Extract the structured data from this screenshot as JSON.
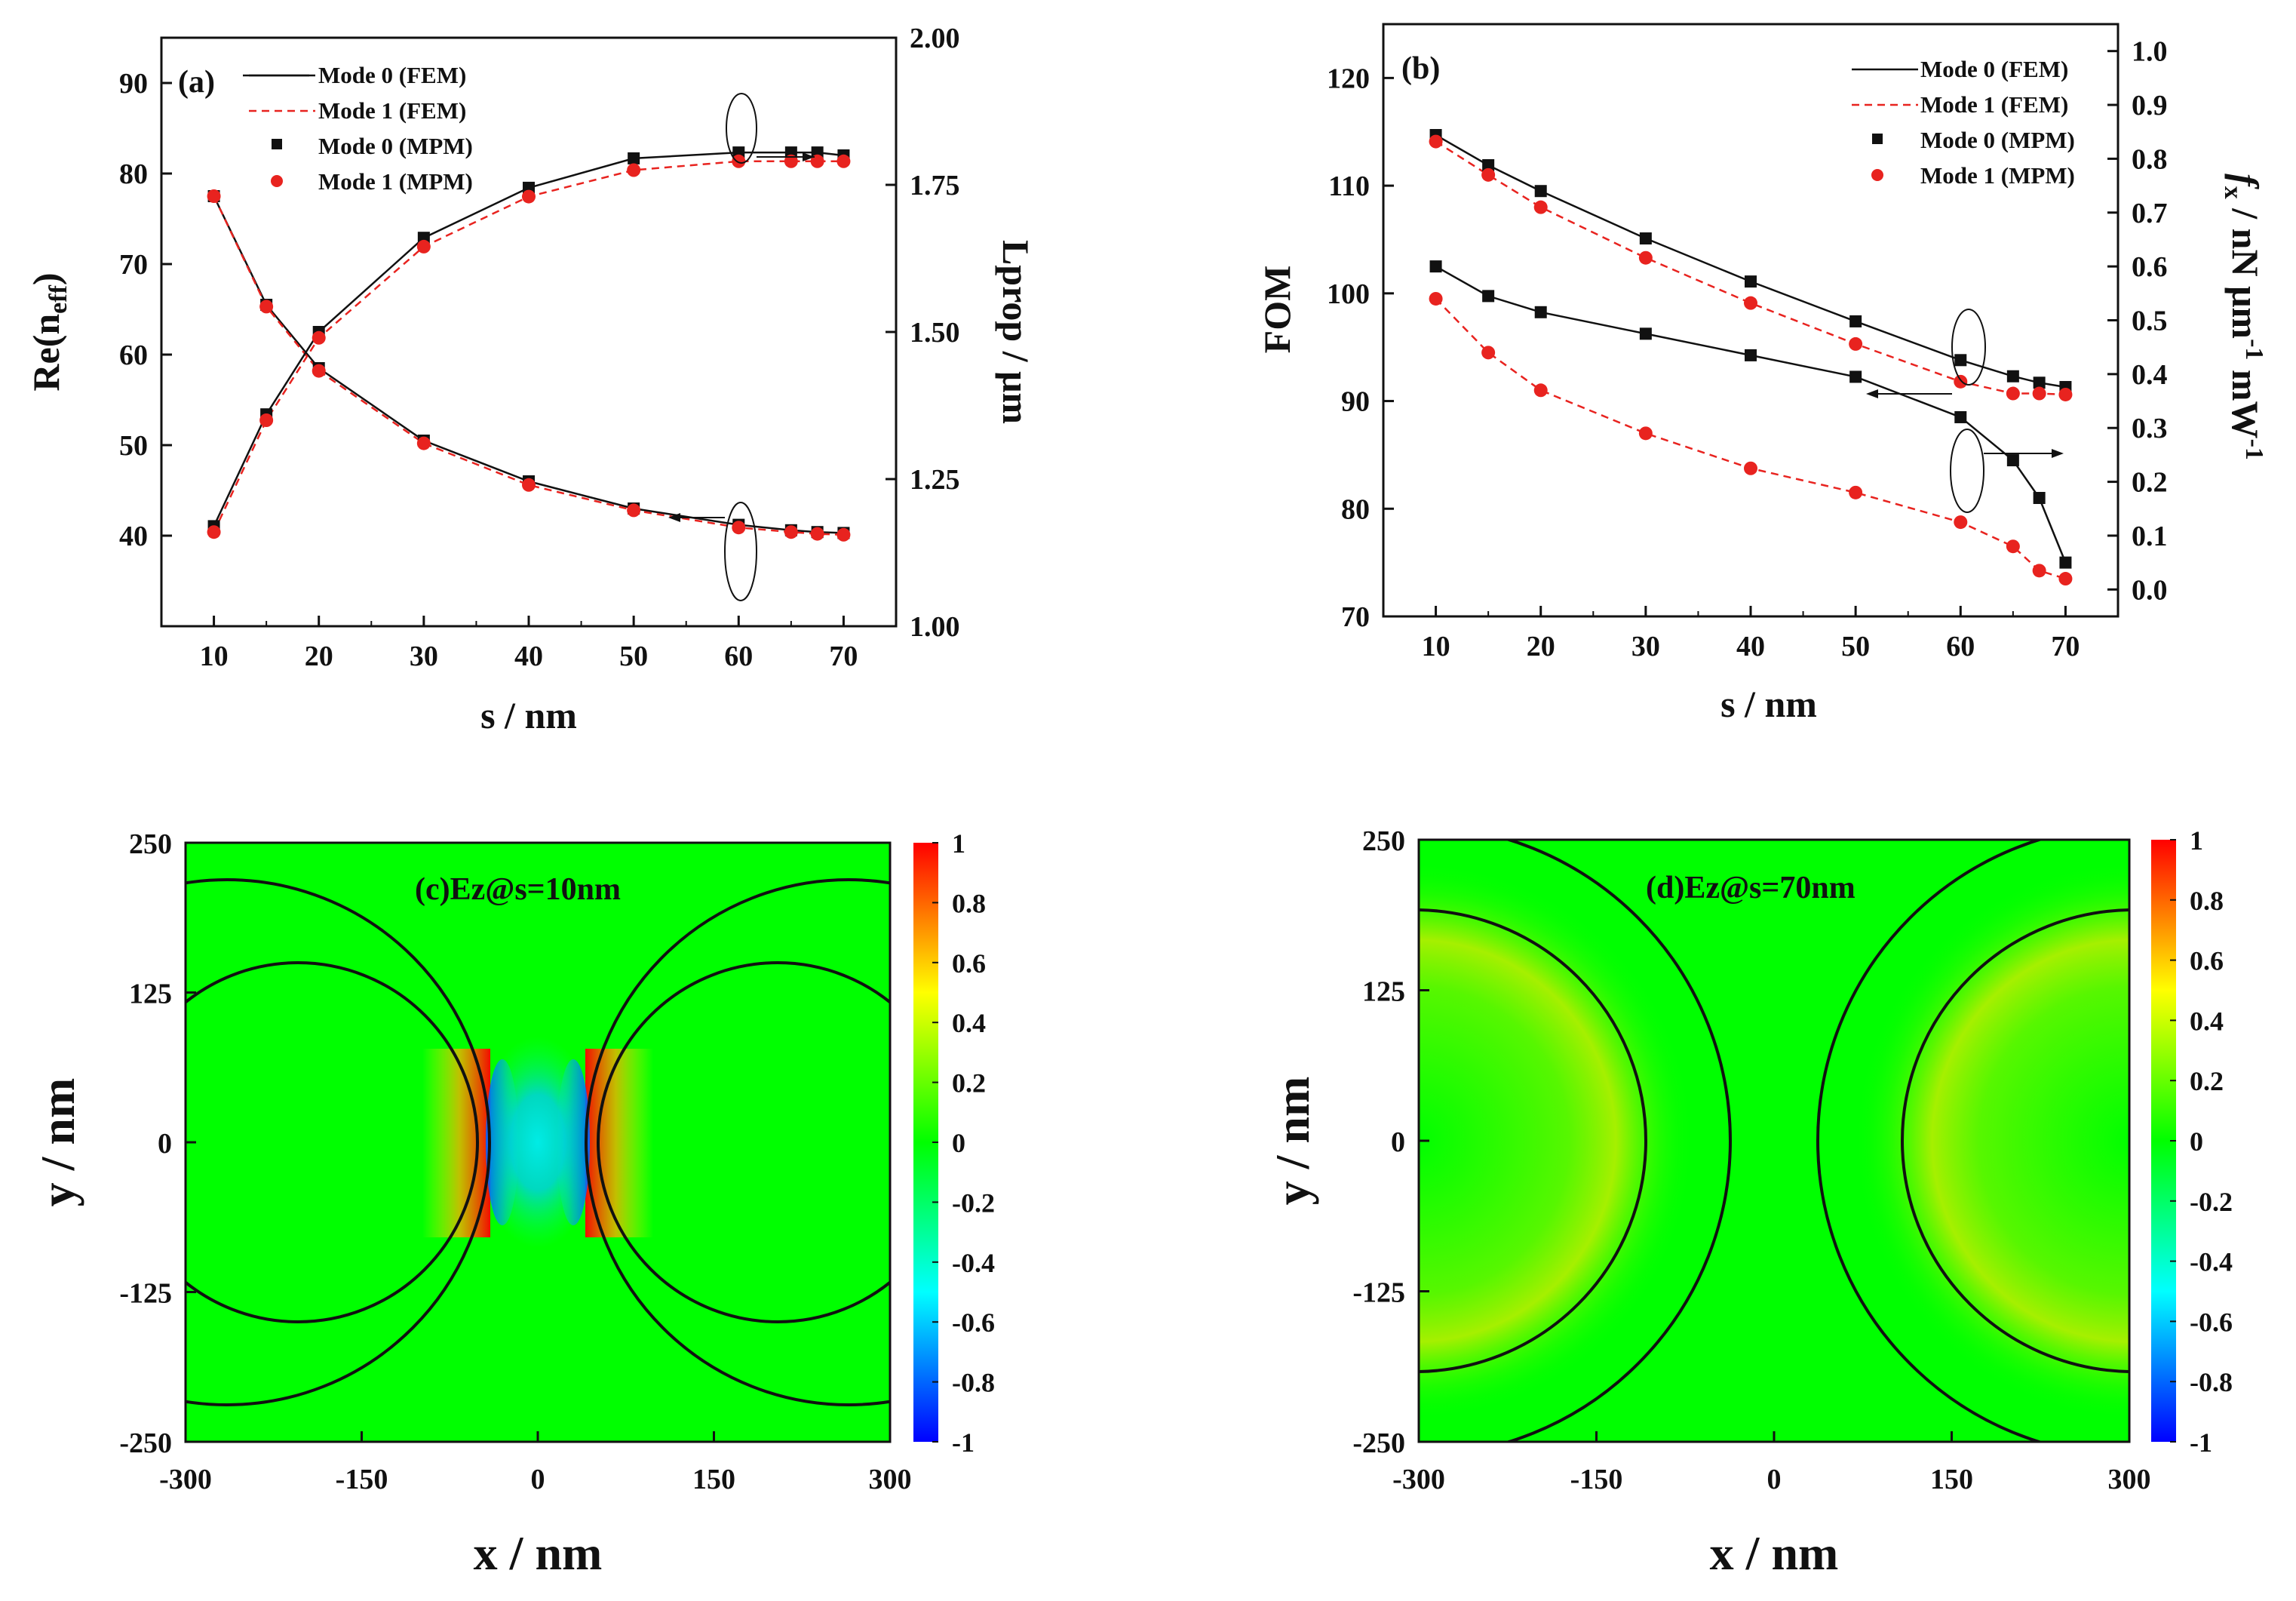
{
  "chart_data": [
    {
      "panel": "a",
      "type": "line",
      "panel_label": "(a)",
      "xlabel": "s / nm",
      "ylabel_left": "Re(n",
      "ylabel_left_sub": "eff",
      "ylabel_left_close": ")",
      "ylabel_right": "Lprop / μm",
      "xlim": [
        5,
        75
      ],
      "ylim_left": [
        30,
        95
      ],
      "ylim_right": [
        1.0,
        2.0
      ],
      "xticks": [
        10,
        20,
        30,
        40,
        50,
        60,
        70
      ],
      "yticks_left": [
        40,
        50,
        60,
        70,
        80,
        90
      ],
      "yticks_right": [
        "1.00",
        "1.25",
        "1.50",
        "1.75",
        "2.00"
      ],
      "x": [
        10,
        15,
        20,
        30,
        40,
        50,
        60,
        65,
        67.5,
        70
      ],
      "series": [
        {
          "name": "Mode 0 (FEM)",
          "axis": "left",
          "style": "solid",
          "values": [
            77.5,
            65.5,
            58.5,
            50.5,
            46.0,
            43.0,
            41.2,
            40.6,
            40.4,
            40.3
          ]
        },
        {
          "name": "Mode 1 (FEM)",
          "axis": "left",
          "style": "dashed",
          "values": [
            77.5,
            65.3,
            58.2,
            50.2,
            45.6,
            42.8,
            40.9,
            40.4,
            40.2,
            40.1
          ]
        },
        {
          "name": "Mode 0 (MPM)",
          "axis": "left",
          "style": "square",
          "values": [
            77.5,
            65.5,
            58.5,
            50.5,
            46.0,
            43.0,
            41.2,
            40.6,
            40.4,
            40.3
          ]
        },
        {
          "name": "Mode 1 (MPM)",
          "axis": "left",
          "style": "circle",
          "values": [
            77.5,
            65.3,
            58.2,
            50.2,
            45.6,
            42.8,
            40.9,
            40.4,
            40.2,
            40.1
          ]
        },
        {
          "name": "Mode 0 (FEM)",
          "axis": "right",
          "style": "solid",
          "values": [
            1.17,
            1.36,
            1.5,
            1.66,
            1.745,
            1.795,
            1.805,
            1.805,
            1.805,
            1.8
          ]
        },
        {
          "name": "Mode 1 (FEM)",
          "axis": "right",
          "style": "dashed",
          "values": [
            1.16,
            1.35,
            1.49,
            1.645,
            1.73,
            1.775,
            1.79,
            1.79,
            1.79,
            1.79
          ]
        },
        {
          "name": "Mode 0 (MPM)",
          "axis": "right",
          "style": "square",
          "values": [
            1.17,
            1.36,
            1.5,
            1.66,
            1.745,
            1.795,
            1.805,
            1.805,
            1.805,
            1.8
          ]
        },
        {
          "name": "Mode 1 (MPM)",
          "axis": "right",
          "style": "circle",
          "values": [
            1.16,
            1.35,
            1.49,
            1.645,
            1.73,
            1.775,
            1.79,
            1.79,
            1.79,
            1.79
          ]
        }
      ],
      "legend": [
        "Mode 0 (FEM)",
        "Mode 1 (FEM)",
        "Mode 0 (MPM)",
        "Mode 1 (MPM)"
      ],
      "legend_position": "top-right"
    },
    {
      "panel": "b",
      "type": "line",
      "panel_label": "(b)",
      "xlabel": "s / nm",
      "ylabel_left": "FOM",
      "ylabel_right": "f",
      "ylabel_right_sub": "x",
      "ylabel_right_rest": " / nN μm",
      "ylabel_right_sup1": "-1",
      "ylabel_right_rest2": " mW",
      "ylabel_right_sup2": "-1",
      "xlim": [
        5,
        75
      ],
      "ylim_left": [
        70,
        125
      ],
      "ylim_right": [
        -0.05,
        1.05
      ],
      "xticks": [
        10,
        20,
        30,
        40,
        50,
        60,
        70
      ],
      "yticks_left": [
        70,
        80,
        90,
        100,
        110,
        120
      ],
      "yticks_right": [
        "0.0",
        "0.1",
        "0.2",
        "0.3",
        "0.4",
        "0.5",
        "0.6",
        "0.7",
        "0.8",
        "0.9",
        "1.0"
      ],
      "x": [
        10,
        15,
        20,
        30,
        40,
        50,
        60,
        65,
        67.5,
        70
      ],
      "series": [
        {
          "name": "Mode 0 (FEM)",
          "axis": "left",
          "style": "solid",
          "values": [
            114.7,
            111.9,
            109.5,
            105.1,
            101.1,
            97.4,
            93.8,
            92.3,
            91.7,
            91.3
          ]
        },
        {
          "name": "Mode 1 (FEM)",
          "axis": "left",
          "style": "dashed",
          "values": [
            114.1,
            111.0,
            108.0,
            103.3,
            99.1,
            95.3,
            91.8,
            90.7,
            90.7,
            90.6
          ]
        },
        {
          "name": "Mode 0 (MPM)",
          "axis": "left",
          "style": "square",
          "values": [
            114.7,
            111.9,
            109.5,
            105.1,
            101.1,
            97.4,
            93.8,
            92.3,
            91.7,
            91.3
          ]
        },
        {
          "name": "Mode 1 (MPM)",
          "axis": "left",
          "style": "circle",
          "values": [
            114.1,
            111.0,
            108.0,
            103.3,
            99.1,
            95.3,
            91.8,
            90.7,
            90.7,
            90.6
          ]
        },
        {
          "name": "Mode 0 (FEM)",
          "axis": "right",
          "style": "solid",
          "values": [
            0.6,
            0.545,
            0.515,
            0.475,
            0.435,
            0.395,
            0.32,
            0.24,
            0.17,
            0.05
          ]
        },
        {
          "name": "Mode 1 (FEM)",
          "axis": "right",
          "style": "dashed",
          "values": [
            0.54,
            0.44,
            0.37,
            0.29,
            0.225,
            0.18,
            0.125,
            0.08,
            0.035,
            0.02
          ]
        },
        {
          "name": "Mode 0 (MPM)",
          "axis": "right",
          "style": "square",
          "values": [
            0.6,
            0.545,
            0.515,
            0.475,
            0.435,
            0.395,
            0.32,
            0.24,
            0.17,
            0.05
          ]
        },
        {
          "name": "Mode 1 (MPM)",
          "axis": "right",
          "style": "circle",
          "values": [
            0.54,
            0.44,
            0.37,
            0.29,
            0.225,
            0.18,
            0.125,
            0.08,
            0.035,
            0.02
          ]
        }
      ],
      "legend": [
        "Mode 0 (FEM)",
        "Mode 1 (FEM)",
        "Mode 0 (MPM)",
        "Mode 1 (MPM)"
      ],
      "legend_position": "top-right"
    },
    {
      "panel": "c",
      "type": "heatmap",
      "panel_label": "(c)Ez@s=10nm",
      "xlabel": "x / nm",
      "ylabel": "y / nm",
      "xlim": [
        -300,
        300
      ],
      "ylim": [
        -250,
        250
      ],
      "xticks": [
        "-300",
        "-150",
        "0",
        "150",
        "300"
      ],
      "yticks": [
        "-250",
        "-125",
        "0",
        "125",
        "250"
      ],
      "colorbar_ticks": [
        "1",
        "0.8",
        "0.6",
        "0.4",
        "0.2",
        "0",
        "-0.2",
        "-0.4",
        "-0.6",
        "-0.8",
        "-1"
      ],
      "colorbar_range": [
        -1,
        1
      ],
      "gap_nm": 10,
      "inner_radius_nm": 150,
      "outer_radius_nm": 220,
      "left_center_nm": [
        -195,
        0
      ],
      "right_center_nm": [
        195,
        0
      ]
    },
    {
      "panel": "d",
      "type": "heatmap",
      "panel_label": "(d)Ez@s=70nm",
      "xlabel": "x / nm",
      "ylabel": "y / nm",
      "xlim": [
        -300,
        300
      ],
      "ylim": [
        -250,
        250
      ],
      "xticks": [
        "-300",
        "-150",
        "0",
        "150",
        "300"
      ],
      "yticks": [
        "-250",
        "-125",
        "0",
        "125",
        "250"
      ],
      "colorbar_ticks": [
        "1",
        "0.8",
        "0.6",
        "0.4",
        "0.2",
        "0",
        "-0.2",
        "-0.4",
        "-0.6",
        "-0.8",
        "-1"
      ],
      "colorbar_range": [
        -1,
        1
      ],
      "gap_nm": 70,
      "inner_radius_nm": 150,
      "outer_radius_nm": 220,
      "left_center_nm": [
        -255,
        0
      ],
      "right_center_nm": [
        255,
        0
      ]
    }
  ]
}
